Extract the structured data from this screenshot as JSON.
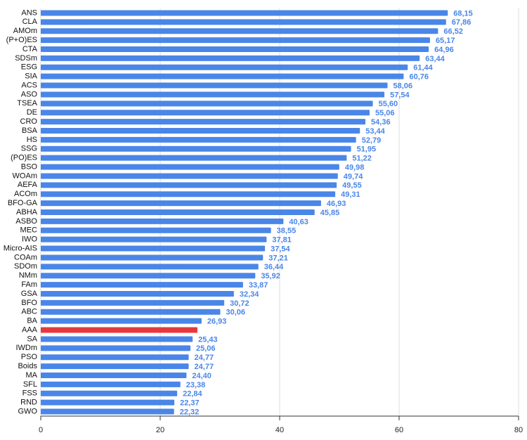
{
  "chart_data": {
    "type": "barh",
    "categories": [
      "ANS",
      "CLA",
      "AMOm",
      "(P+O)ES",
      "CTA",
      "SDSm",
      "ESG",
      "SIA",
      "ACS",
      "ASO",
      "TSEA",
      "DE",
      "CRO",
      "BSA",
      "HS",
      "SSG",
      "(PO)ES",
      "BSO",
      "WOAm",
      "AEFA",
      "ACOm",
      "BFO-GA",
      "ABHA",
      "ASBO",
      "MEC",
      "IWO",
      "Micro-AIS",
      "COAm",
      "SDOm",
      "NMm",
      "FAm",
      "GSA",
      "BFO",
      "ABC",
      "BA",
      "AAA",
      "SA",
      "IWDm",
      "PSO",
      "Boids",
      "MA",
      "SFL",
      "FSS",
      "RND",
      "GWO"
    ],
    "values": [
      68.15,
      67.86,
      66.52,
      65.17,
      64.96,
      63.44,
      61.44,
      60.76,
      58.06,
      57.54,
      55.6,
      55.06,
      54.36,
      53.44,
      52.79,
      51.95,
      51.22,
      49.98,
      49.74,
      49.55,
      49.31,
      46.93,
      45.85,
      40.63,
      38.55,
      37.81,
      37.54,
      37.21,
      36.44,
      35.92,
      33.87,
      32.34,
      30.72,
      30.06,
      26.93,
      26.23,
      25.43,
      25.06,
      24.77,
      24.77,
      24.4,
      23.38,
      22.84,
      22.37,
      22.32
    ],
    "value_labels": [
      "68,15",
      "67,86",
      "66,52",
      "65,17",
      "64,96",
      "63,44",
      "61,44",
      "60,76",
      "58,06",
      "57,54",
      "55,60",
      "55,06",
      "54,36",
      "53,44",
      "52,79",
      "51,95",
      "51,22",
      "49,98",
      "49,74",
      "49,55",
      "49,31",
      "46,93",
      "45,85",
      "40,63",
      "38,55",
      "37,81",
      "37,54",
      "37,21",
      "36,44",
      "35,92",
      "33,87",
      "32,34",
      "30,72",
      "30,06",
      "26,93",
      null,
      "25,43",
      "25,06",
      "24,77",
      "24,77",
      "24,40",
      "23,38",
      "22,84",
      "22,37",
      "22,32"
    ],
    "colors": [
      "#4a86e8",
      "#4a86e8",
      "#4a86e8",
      "#4a86e8",
      "#4a86e8",
      "#4a86e8",
      "#4a86e8",
      "#4a86e8",
      "#4a86e8",
      "#4a86e8",
      "#4a86e8",
      "#4a86e8",
      "#4a86e8",
      "#4a86e8",
      "#4a86e8",
      "#4a86e8",
      "#4a86e8",
      "#4a86e8",
      "#4a86e8",
      "#4a86e8",
      "#4a86e8",
      "#4a86e8",
      "#4a86e8",
      "#4a86e8",
      "#4a86e8",
      "#4a86e8",
      "#4a86e8",
      "#4a86e8",
      "#4a86e8",
      "#4a86e8",
      "#4a86e8",
      "#4a86e8",
      "#4a86e8",
      "#4a86e8",
      "#4a86e8",
      "#e8373d",
      "#4a86e8",
      "#4a86e8",
      "#4a86e8",
      "#4a86e8",
      "#4a86e8",
      "#4a86e8",
      "#4a86e8",
      "#4a86e8",
      "#4a86e8"
    ],
    "xlim": [
      0,
      80
    ],
    "xticks": [
      0,
      20,
      40,
      60,
      80
    ],
    "grid": true
  }
}
